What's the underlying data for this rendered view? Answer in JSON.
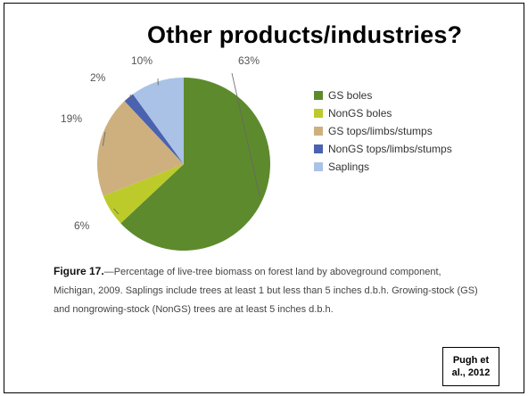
{
  "slide": {
    "title": "Other products/industries?",
    "citation": "Pugh et al., 2012"
  },
  "caption": {
    "head": "Figure 17.",
    "text": "—Percentage of live-tree biomass on forest land by aboveground component, Michigan, 2009. Saplings include trees at least 1 but less than 5 inches d.b.h. Growing-stock (GS) and nongrowing-stock (NonGS) trees are at least 5 inches d.b.h."
  },
  "chart_data": {
    "type": "pie",
    "title": "",
    "unit": "%",
    "legend_position": "right",
    "slices": [
      {
        "label": "GS boles",
        "value": 63,
        "display": "63%",
        "color": "#5e8a2e"
      },
      {
        "label": "NonGS boles",
        "value": 6,
        "display": "6%",
        "color": "#bccb2a"
      },
      {
        "label": "GS tops/limbs/stumps",
        "value": 19,
        "display": "19%",
        "color": "#cdb07e"
      },
      {
        "label": "NonGS tops/limbs/stumps",
        "value": 2,
        "display": "2%",
        "color": "#4a62b0"
      },
      {
        "label": "Saplings",
        "value": 10,
        "display": "10%",
        "color": "#a9c2e6"
      }
    ]
  }
}
